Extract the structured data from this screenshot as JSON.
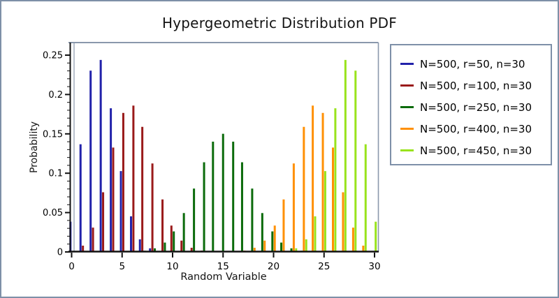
{
  "page": {
    "background": "#ffffff",
    "frame_color": "#7E90A8",
    "window_border_color": "#8A98AC",
    "axis_color": "#111111"
  },
  "chart_data": {
    "type": "bar",
    "title": "Hypergeometric Distribution PDF",
    "xlabel": "Random Variable",
    "ylabel": "Probability",
    "xlim": [
      0,
      30
    ],
    "ylim": [
      0,
      0.25
    ],
    "grid": false,
    "legend_position": "right-outside",
    "x_ticks": [
      "0",
      "5",
      "10",
      "15",
      "20",
      "25",
      "30"
    ],
    "x_tick_values": [
      0,
      5,
      10,
      15,
      20,
      25,
      30
    ],
    "y_ticks": [
      "0",
      "0.05",
      "0.1",
      "0.15",
      "0.2",
      "0.25"
    ],
    "y_tick_values": [
      0,
      0.05,
      0.1,
      0.15,
      0.2,
      0.25
    ],
    "y_minor_step": 0.01,
    "x": [
      0,
      1,
      2,
      3,
      4,
      5,
      6,
      7,
      8,
      9,
      10,
      11,
      12,
      13,
      14,
      15,
      16,
      17,
      18,
      19,
      20,
      21,
      22,
      23,
      24,
      25,
      26,
      27,
      28,
      29,
      30
    ],
    "series": [
      {
        "key": "r50",
        "name": "N=500, r=50, n=30",
        "color": "#2222AA",
        "values": [
          0.0384,
          0.1368,
          0.2303,
          0.2439,
          0.1825,
          0.1027,
          0.0452,
          0.016,
          0.0046,
          0.0011,
          0.0002,
          0,
          0,
          0,
          0,
          0,
          0,
          0,
          0,
          0,
          0,
          0,
          0,
          0,
          0,
          0,
          0,
          0,
          0,
          0,
          0
        ]
      },
      {
        "key": "r100",
        "name": "N=500, r=100, n=30",
        "color": "#9A1A1A",
        "values": [
          0.001,
          0.008,
          0.0309,
          0.0758,
          0.1326,
          0.1766,
          0.1859,
          0.1589,
          0.1124,
          0.0667,
          0.0335,
          0.0144,
          0.0053,
          0.0017,
          0.0005,
          0.0001,
          0,
          0,
          0,
          0,
          0,
          0,
          0,
          0,
          0,
          0,
          0,
          0,
          0,
          0,
          0
        ]
      },
      {
        "key": "r250",
        "name": "N=500, r=250, n=30",
        "color": "#0B6B0B",
        "values": [
          0,
          0,
          0,
          0,
          0,
          0,
          0.0004,
          0.0015,
          0.0046,
          0.0119,
          0.0261,
          0.0494,
          0.0805,
          0.1139,
          0.1401,
          0.1501,
          0.1401,
          0.1139,
          0.0805,
          0.0494,
          0.0261,
          0.0119,
          0.0046,
          0.0015,
          0.0004,
          0,
          0,
          0,
          0,
          0,
          0
        ]
      },
      {
        "key": "r400",
        "name": "N=500, r=400, n=30",
        "color": "#FF9005",
        "values": [
          0,
          0,
          0,
          0,
          0,
          0,
          0,
          0,
          0,
          0,
          0,
          0,
          0,
          0,
          0,
          0.0001,
          0.0005,
          0.0017,
          0.0053,
          0.0144,
          0.0335,
          0.0667,
          0.1124,
          0.1589,
          0.1859,
          0.1766,
          0.1326,
          0.0758,
          0.0309,
          0.008,
          0.001
        ]
      },
      {
        "key": "r450",
        "name": "N=500, r=450, n=30",
        "color": "#99E31C",
        "values": [
          0,
          0,
          0,
          0,
          0,
          0,
          0,
          0,
          0,
          0,
          0,
          0,
          0,
          0,
          0,
          0,
          0,
          0,
          0,
          0,
          0.0002,
          0.0011,
          0.0046,
          0.016,
          0.0452,
          0.1027,
          0.1825,
          0.2439,
          0.2303,
          0.1368,
          0.0384
        ]
      }
    ]
  }
}
